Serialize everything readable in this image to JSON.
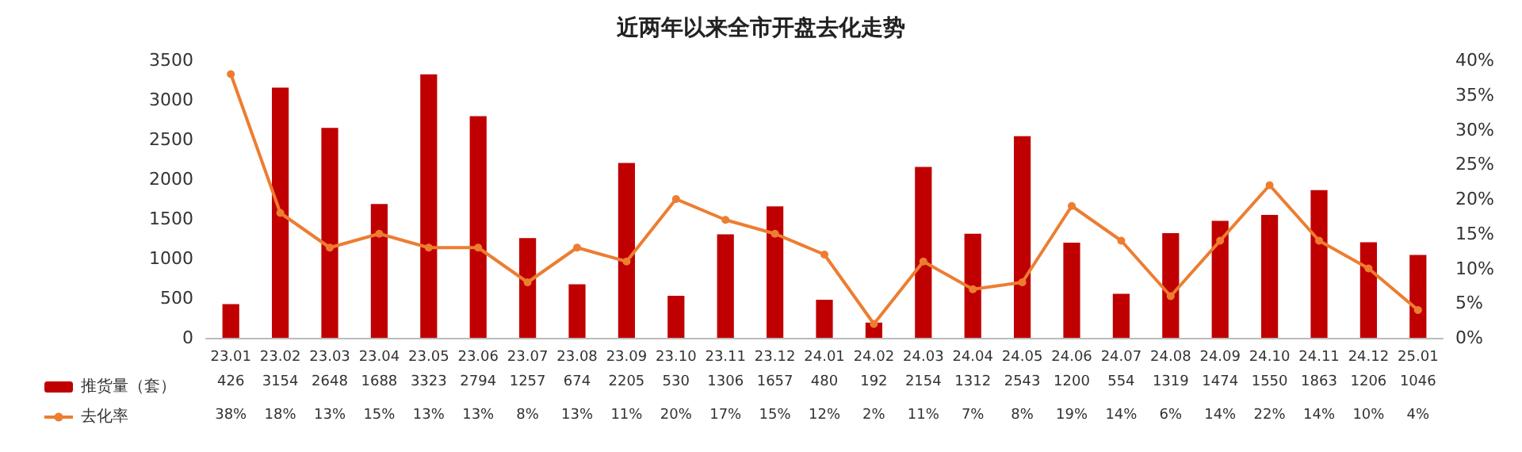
{
  "chart_data": {
    "type": "bar",
    "title": "近两年以来全市开盘去化走势",
    "categories": [
      "23.01",
      "23.02",
      "23.03",
      "23.04",
      "23.05",
      "23.06",
      "23.07",
      "23.08",
      "23.09",
      "23.10",
      "23.11",
      "23.12",
      "24.01",
      "24.02",
      "24.03",
      "24.04",
      "24.05",
      "24.06",
      "24.07",
      "24.08",
      "24.09",
      "24.10",
      "24.11",
      "24.12",
      "25.01"
    ],
    "series": [
      {
        "name": "推货量（套）",
        "color": "#c00000",
        "values": [
          426,
          3154,
          2648,
          1688,
          3323,
          2794,
          1257,
          674,
          2205,
          530,
          1306,
          1657,
          480,
          192,
          2154,
          1312,
          2543,
          1200,
          554,
          1319,
          1474,
          1550,
          1863,
          1206,
          1046
        ],
        "value_labels": [
          "426",
          "3154",
          "2648",
          "1688",
          "3323",
          "2794",
          "1257",
          "674",
          "2205",
          "530",
          "1306",
          "1657",
          "480",
          "192",
          "2154",
          "1312",
          "2543",
          "1200",
          "554",
          "1319",
          "1474",
          "1550",
          "1863",
          "1206",
          "1046"
        ]
      },
      {
        "name": "去化率",
        "type": "line",
        "axis": "y2",
        "color": "#ed7d31",
        "marker": "circle",
        "values": [
          38,
          18,
          13,
          15,
          13,
          13,
          8,
          13,
          11,
          20,
          17,
          15,
          12,
          2,
          11,
          7,
          8,
          19,
          14,
          6,
          14,
          22,
          14,
          10,
          4
        ],
        "value_labels": [
          "38%",
          "18%",
          "13%",
          "15%",
          "13%",
          "13%",
          "8%",
          "13%",
          "11%",
          "20%",
          "17%",
          "15%",
          "12%",
          "2%",
          "11%",
          "7%",
          "8%",
          "19%",
          "14%",
          "6%",
          "14%",
          "22%",
          "14%",
          "10%",
          "4%"
        ]
      }
    ],
    "ylim": [
      0,
      3500
    ],
    "yticks": [
      0,
      500,
      1000,
      1500,
      2000,
      2500,
      3000,
      3500
    ],
    "y2lim": [
      0,
      40
    ],
    "y2ticks": [
      {
        "value": 0,
        "label": "0%"
      },
      {
        "value": 5,
        "label": "5%"
      },
      {
        "value": 10,
        "label": "10%"
      },
      {
        "value": 15,
        "label": "15%"
      },
      {
        "value": 20,
        "label": "20%"
      },
      {
        "value": 25,
        "label": "25%"
      },
      {
        "value": 30,
        "label": "30%"
      },
      {
        "value": 35,
        "label": "35%"
      },
      {
        "value": 40,
        "label": "40%"
      }
    ],
    "grid": false,
    "legend": "bottom left"
  }
}
